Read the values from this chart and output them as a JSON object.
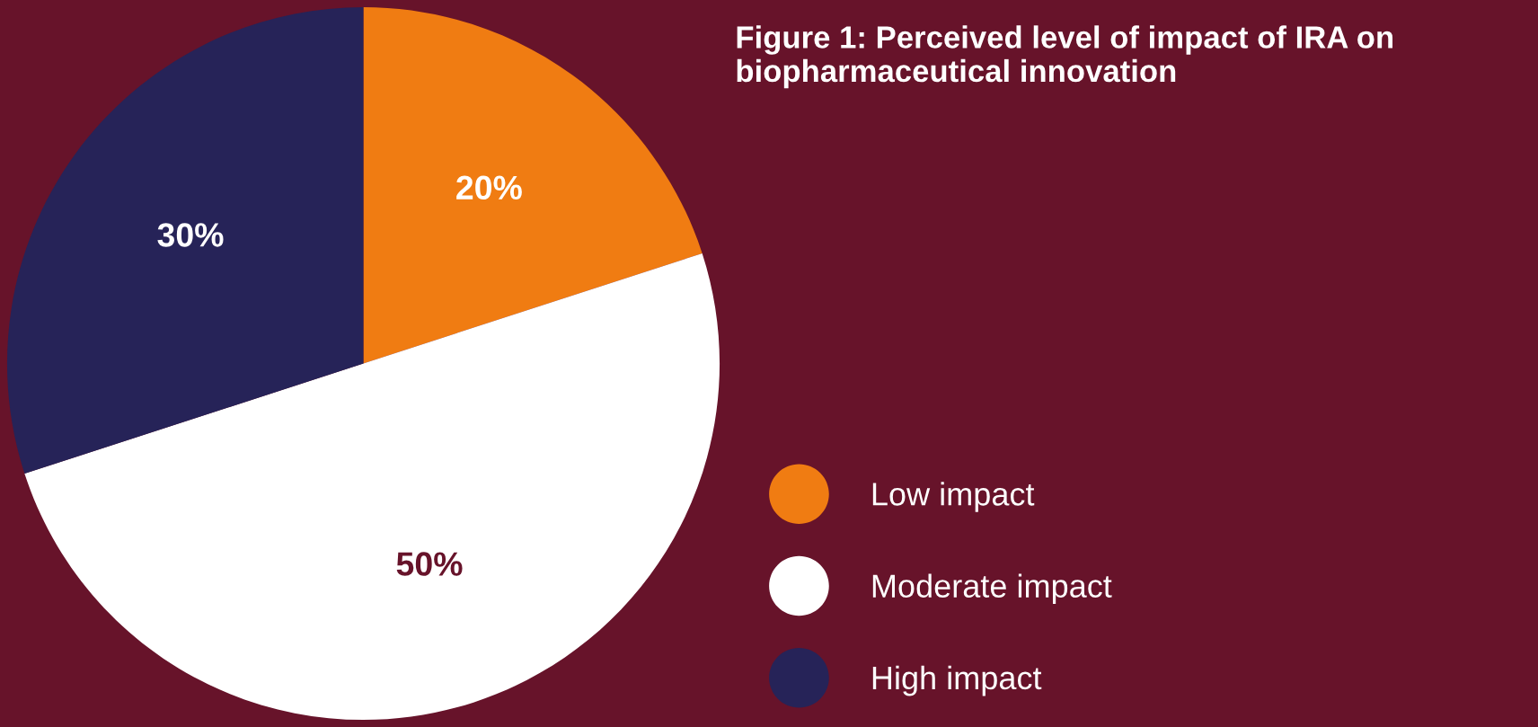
{
  "chart_data": {
    "type": "pie",
    "title": "Figure 1: Perceived level of impact of IRA on\nbiopharmaceutical innovation",
    "categories": [
      "Low impact",
      "Moderate impact",
      "High impact"
    ],
    "values": [
      20,
      50,
      30
    ],
    "colors": [
      "#f07c12",
      "#ffffff",
      "#262358"
    ],
    "value_labels": [
      "20%",
      "50%",
      "30%"
    ],
    "legend": "right"
  }
}
